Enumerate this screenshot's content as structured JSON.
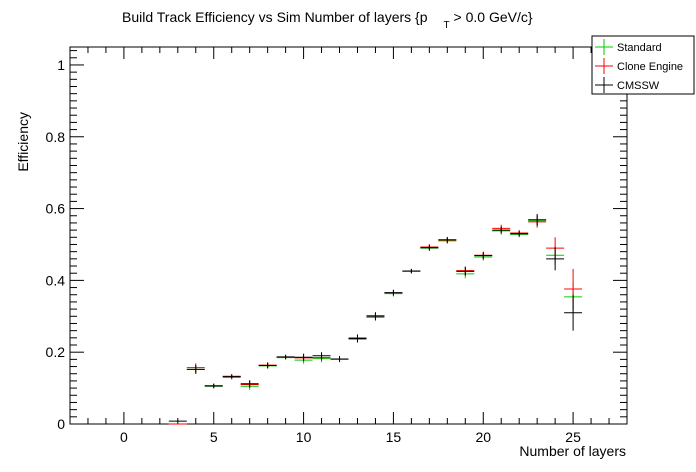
{
  "chart_data": {
    "type": "scatter",
    "title_main": "Build Track Efficiency vs Sim Number of layers {p",
    "title_sub": "T",
    "title_tail": " > 0.0 GeV/c}",
    "xlabel": "Number of layers",
    "ylabel": "Efficiency",
    "xlim": [
      -3,
      28
    ],
    "ylim": [
      0,
      1.05
    ],
    "x_ticks": [
      0,
      5,
      10,
      15,
      20,
      25
    ],
    "x_tick_labels": [
      "0",
      "5",
      "10",
      "15",
      "20",
      "25"
    ],
    "y_ticks": [
      0,
      0.2,
      0.4,
      0.6,
      0.8,
      1
    ],
    "y_tick_labels": [
      "0",
      "0.2",
      "0.4",
      "0.6",
      "0.8",
      "1"
    ],
    "legend_position": "top-right",
    "series": [
      {
        "name": "Standard",
        "color": "#00cc00",
        "points": [
          {
            "x": 3,
            "y": 0.0,
            "err": 0.0
          },
          {
            "x": 4,
            "y": 0.152,
            "err": 0.012
          },
          {
            "x": 5,
            "y": 0.105,
            "err": 0.006
          },
          {
            "x": 6,
            "y": 0.13,
            "err": 0.006
          },
          {
            "x": 7,
            "y": 0.105,
            "err": 0.01
          },
          {
            "x": 8,
            "y": 0.162,
            "err": 0.008
          },
          {
            "x": 9,
            "y": 0.185,
            "err": 0.006
          },
          {
            "x": 10,
            "y": 0.178,
            "err": 0.01
          },
          {
            "x": 11,
            "y": 0.182,
            "err": 0.01
          },
          {
            "x": 12,
            "y": 0.18,
            "err": 0.008
          },
          {
            "x": 13,
            "y": 0.236,
            "err": 0.01
          },
          {
            "x": 14,
            "y": 0.297,
            "err": 0.01
          },
          {
            "x": 15,
            "y": 0.363,
            "err": 0.008
          },
          {
            "x": 16,
            "y": 0.425,
            "err": 0.006
          },
          {
            "x": 17,
            "y": 0.49,
            "err": 0.008
          },
          {
            "x": 18,
            "y": 0.51,
            "err": 0.008
          },
          {
            "x": 19,
            "y": 0.418,
            "err": 0.012
          },
          {
            "x": 20,
            "y": 0.465,
            "err": 0.01
          },
          {
            "x": 21,
            "y": 0.538,
            "err": 0.01
          },
          {
            "x": 22,
            "y": 0.528,
            "err": 0.008
          },
          {
            "x": 23,
            "y": 0.566,
            "err": 0.016
          },
          {
            "x": 24,
            "y": 0.47,
            "err": 0.026
          },
          {
            "x": 25,
            "y": 0.354,
            "err": 0.04
          }
        ]
      },
      {
        "name": "Clone Engine",
        "color": "#ff0000",
        "points": [
          {
            "x": 3,
            "y": 0.0,
            "err": 0.0
          },
          {
            "x": 4,
            "y": 0.157,
            "err": 0.012
          },
          {
            "x": 5,
            "y": 0.107,
            "err": 0.006
          },
          {
            "x": 6,
            "y": 0.133,
            "err": 0.006
          },
          {
            "x": 7,
            "y": 0.11,
            "err": 0.01
          },
          {
            "x": 8,
            "y": 0.164,
            "err": 0.008
          },
          {
            "x": 9,
            "y": 0.186,
            "err": 0.006
          },
          {
            "x": 10,
            "y": 0.184,
            "err": 0.01
          },
          {
            "x": 11,
            "y": 0.185,
            "err": 0.01
          },
          {
            "x": 12,
            "y": 0.181,
            "err": 0.008
          },
          {
            "x": 13,
            "y": 0.24,
            "err": 0.01
          },
          {
            "x": 14,
            "y": 0.302,
            "err": 0.01
          },
          {
            "x": 15,
            "y": 0.365,
            "err": 0.008
          },
          {
            "x": 16,
            "y": 0.426,
            "err": 0.006
          },
          {
            "x": 17,
            "y": 0.493,
            "err": 0.008
          },
          {
            "x": 18,
            "y": 0.512,
            "err": 0.008
          },
          {
            "x": 19,
            "y": 0.427,
            "err": 0.012
          },
          {
            "x": 20,
            "y": 0.47,
            "err": 0.01
          },
          {
            "x": 21,
            "y": 0.545,
            "err": 0.01
          },
          {
            "x": 22,
            "y": 0.532,
            "err": 0.008
          },
          {
            "x": 23,
            "y": 0.563,
            "err": 0.016
          },
          {
            "x": 24,
            "y": 0.49,
            "err": 0.03
          },
          {
            "x": 25,
            "y": 0.376,
            "err": 0.056
          }
        ]
      },
      {
        "name": "CMSSW",
        "color": "#000000",
        "points": [
          {
            "x": 3,
            "y": 0.008,
            "err": 0.002
          },
          {
            "x": 4,
            "y": 0.152,
            "err": 0.012
          },
          {
            "x": 5,
            "y": 0.106,
            "err": 0.006
          },
          {
            "x": 6,
            "y": 0.132,
            "err": 0.006
          },
          {
            "x": 7,
            "y": 0.112,
            "err": 0.01
          },
          {
            "x": 8,
            "y": 0.163,
            "err": 0.008
          },
          {
            "x": 9,
            "y": 0.187,
            "err": 0.006
          },
          {
            "x": 10,
            "y": 0.186,
            "err": 0.01
          },
          {
            "x": 11,
            "y": 0.19,
            "err": 0.01
          },
          {
            "x": 12,
            "y": 0.181,
            "err": 0.008
          },
          {
            "x": 13,
            "y": 0.238,
            "err": 0.01
          },
          {
            "x": 14,
            "y": 0.3,
            "err": 0.01
          },
          {
            "x": 15,
            "y": 0.366,
            "err": 0.008
          },
          {
            "x": 16,
            "y": 0.426,
            "err": 0.006
          },
          {
            "x": 17,
            "y": 0.491,
            "err": 0.008
          },
          {
            "x": 18,
            "y": 0.513,
            "err": 0.008
          },
          {
            "x": 19,
            "y": 0.425,
            "err": 0.012
          },
          {
            "x": 20,
            "y": 0.469,
            "err": 0.01
          },
          {
            "x": 21,
            "y": 0.54,
            "err": 0.01
          },
          {
            "x": 22,
            "y": 0.53,
            "err": 0.008
          },
          {
            "x": 23,
            "y": 0.569,
            "err": 0.016
          },
          {
            "x": 24,
            "y": 0.46,
            "err": 0.032
          },
          {
            "x": 25,
            "y": 0.31,
            "err": 0.05
          }
        ]
      }
    ]
  }
}
